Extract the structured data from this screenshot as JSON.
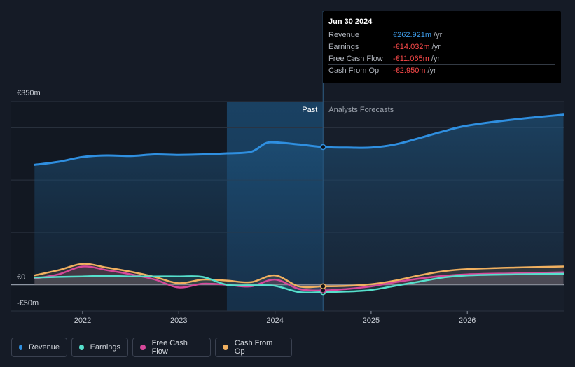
{
  "chart_data": {
    "type": "area",
    "ylim": [
      -50,
      350
    ],
    "y_ticks": [
      {
        "value": 350,
        "label": "€350m"
      },
      {
        "value": 0,
        "label": "€0"
      },
      {
        "value": -50,
        "label": "-€50m"
      }
    ],
    "x_ticks": [
      "2022",
      "2023",
      "2024",
      "2025",
      "2026"
    ],
    "x_range": [
      2021.5,
      2027.0
    ],
    "past_label": "Past",
    "forecast_label": "Analysts Forecasts",
    "past_band_start": 2023.5,
    "divider_x": 2024.5,
    "series": [
      {
        "name": "Revenue",
        "color": "#2f8fe0",
        "points": [
          [
            2021.5,
            229
          ],
          [
            2021.75,
            235
          ],
          [
            2022.0,
            244
          ],
          [
            2022.25,
            247
          ],
          [
            2022.5,
            246
          ],
          [
            2022.75,
            249
          ],
          [
            2023.0,
            248
          ],
          [
            2023.25,
            249
          ],
          [
            2023.5,
            251
          ],
          [
            2023.75,
            254
          ],
          [
            2023.9,
            270
          ],
          [
            2024.0,
            272
          ],
          [
            2024.25,
            268
          ],
          [
            2024.5,
            263
          ],
          [
            2024.75,
            262
          ],
          [
            2025.0,
            262
          ],
          [
            2025.25,
            268
          ],
          [
            2025.5,
            280
          ],
          [
            2025.75,
            293
          ],
          [
            2026.0,
            304
          ],
          [
            2026.5,
            316
          ],
          [
            2027.0,
            325
          ]
        ]
      },
      {
        "name": "Earnings",
        "color": "#56e0cc",
        "points": [
          [
            2021.5,
            14
          ],
          [
            2021.75,
            15
          ],
          [
            2022.0,
            16
          ],
          [
            2022.25,
            17
          ],
          [
            2022.5,
            16
          ],
          [
            2022.75,
            16
          ],
          [
            2023.0,
            16
          ],
          [
            2023.25,
            15
          ],
          [
            2023.5,
            0
          ],
          [
            2023.75,
            -1
          ],
          [
            2024.0,
            -2
          ],
          [
            2024.25,
            -14
          ],
          [
            2024.5,
            -14
          ],
          [
            2024.75,
            -13
          ],
          [
            2025.0,
            -10
          ],
          [
            2025.25,
            -2
          ],
          [
            2025.5,
            6
          ],
          [
            2025.75,
            14
          ],
          [
            2026.0,
            18
          ],
          [
            2026.5,
            20
          ],
          [
            2027.0,
            21
          ]
        ]
      },
      {
        "name": "Free Cash Flow",
        "color": "#d6489a",
        "points": [
          [
            2021.5,
            12
          ],
          [
            2021.75,
            20
          ],
          [
            2022.0,
            35
          ],
          [
            2022.25,
            28
          ],
          [
            2022.5,
            20
          ],
          [
            2022.75,
            10
          ],
          [
            2023.0,
            -5
          ],
          [
            2023.25,
            2
          ],
          [
            2023.5,
            0
          ],
          [
            2023.75,
            -3
          ],
          [
            2024.0,
            10
          ],
          [
            2024.25,
            -8
          ],
          [
            2024.5,
            -11
          ],
          [
            2024.75,
            -8
          ],
          [
            2025.0,
            -3
          ],
          [
            2025.25,
            5
          ],
          [
            2025.5,
            12
          ],
          [
            2025.75,
            17
          ],
          [
            2026.0,
            20
          ],
          [
            2026.5,
            22
          ],
          [
            2027.0,
            24
          ]
        ]
      },
      {
        "name": "Cash From Op",
        "color": "#f0b060",
        "points": [
          [
            2021.5,
            18
          ],
          [
            2021.75,
            28
          ],
          [
            2022.0,
            40
          ],
          [
            2022.25,
            33
          ],
          [
            2022.5,
            25
          ],
          [
            2022.75,
            15
          ],
          [
            2023.0,
            3
          ],
          [
            2023.25,
            10
          ],
          [
            2023.5,
            8
          ],
          [
            2023.75,
            5
          ],
          [
            2024.0,
            18
          ],
          [
            2024.25,
            -3
          ],
          [
            2024.5,
            -3
          ],
          [
            2024.75,
            -2
          ],
          [
            2025.0,
            1
          ],
          [
            2025.25,
            8
          ],
          [
            2025.5,
            18
          ],
          [
            2025.75,
            26
          ],
          [
            2026.0,
            30
          ],
          [
            2026.5,
            33
          ],
          [
            2027.0,
            35
          ]
        ]
      }
    ],
    "highlight": {
      "x": 2024.5,
      "values": [
        263,
        -14,
        -11,
        -3
      ]
    }
  },
  "tooltip": {
    "date": "Jun 30 2024",
    "rows": [
      {
        "label": "Revenue",
        "value": "€262.921m",
        "unit": "/yr",
        "color": "#3d9be8"
      },
      {
        "label": "Earnings",
        "value": "-€14.032m",
        "unit": "/yr",
        "color": "#ff4b4b"
      },
      {
        "label": "Free Cash Flow",
        "value": "-€11.065m",
        "unit": "/yr",
        "color": "#ff4b4b"
      },
      {
        "label": "Cash From Op",
        "value": "-€2.950m",
        "unit": "/yr",
        "color": "#ff4b4b"
      }
    ]
  },
  "legend": [
    {
      "label": "Revenue",
      "color": "#2f8fe0"
    },
    {
      "label": "Earnings",
      "color": "#56e0cc"
    },
    {
      "label": "Free Cash Flow",
      "color": "#d6489a"
    },
    {
      "label": "Cash From Op",
      "color": "#f0b060"
    }
  ]
}
